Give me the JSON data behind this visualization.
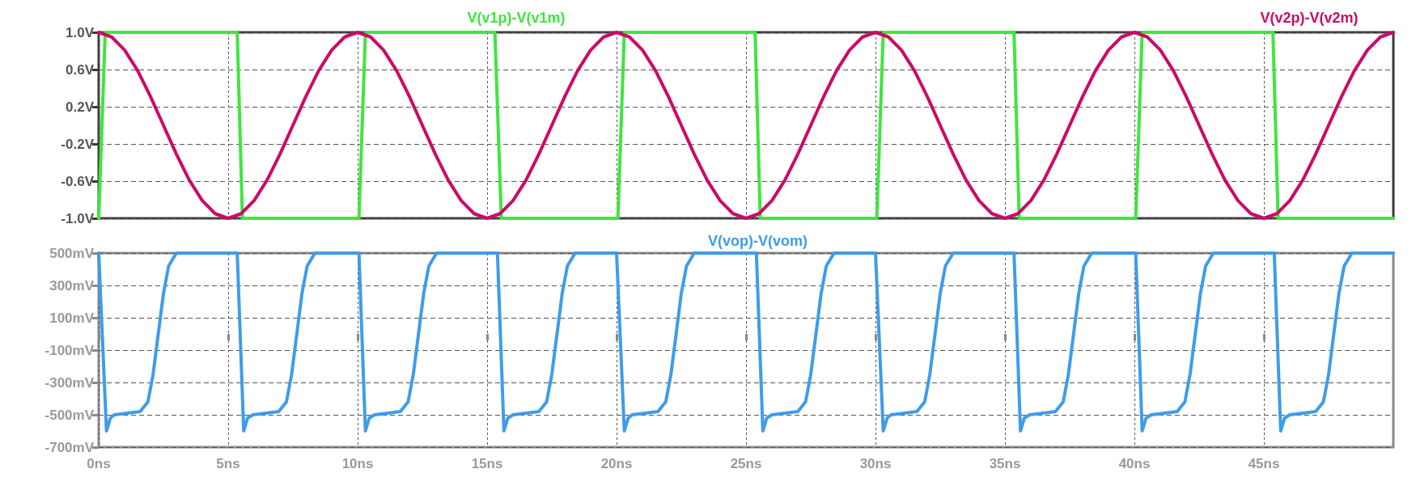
{
  "chart_data": [
    {
      "type": "line",
      "legend": "top",
      "grid": true,
      "tick_labels": "y",
      "marker": "none",
      "line_style": "solid",
      "xlim": [
        0,
        50
      ],
      "xticks": [
        {
          "value": 0,
          "label": null
        },
        {
          "value": 5,
          "label": null
        },
        {
          "value": 10,
          "label": null
        },
        {
          "value": 15,
          "label": null
        },
        {
          "value": 20,
          "label": null
        },
        {
          "value": 25,
          "label": null
        },
        {
          "value": 30,
          "label": null
        },
        {
          "value": 35,
          "label": null
        },
        {
          "value": 40,
          "label": null
        },
        {
          "value": 45,
          "label": null
        }
      ],
      "ylim": [
        -1,
        1
      ],
      "yticks": [
        {
          "value": 1,
          "label": "1.0V"
        },
        {
          "value": 0.6,
          "label": "0.6V"
        },
        {
          "value": 0.2,
          "label": "0.2V"
        },
        {
          "value": -0.2,
          "label": "-0.2V"
        },
        {
          "value": -0.6,
          "label": "-0.6V"
        },
        {
          "value": -1,
          "label": "-1.0V"
        }
      ],
      "series": [
        {
          "name": "V(v1p)-V(v1m)",
          "color": "#3ee63e",
          "x": [
            0,
            0.25,
            5.35,
            5.55,
            10.05,
            10.3,
            15.3,
            15.55,
            20.05,
            20.3,
            25.35,
            25.55,
            30.05,
            30.3,
            35.35,
            35.55,
            40.05,
            40.3,
            45.35,
            45.55,
            50
          ],
          "values": [
            -1,
            1,
            1,
            -1,
            -1,
            1,
            1,
            -1,
            -1,
            1,
            1,
            -1,
            -1,
            1,
            1,
            -1,
            -1,
            1,
            1,
            -1,
            -1
          ]
        },
        {
          "name": "V(v2p)-V(v2m)",
          "color": "#cc0a66",
          "x": [
            0,
            0.5,
            1,
            1.5,
            2,
            2.5,
            3,
            3.5,
            4,
            4.5,
            5,
            5.5,
            6,
            6.5,
            7,
            7.5,
            8,
            8.5,
            9,
            9.5,
            10,
            10.5,
            11,
            11.5,
            12,
            12.5,
            13,
            13.5,
            14,
            14.5,
            15,
            15.5,
            16,
            16.5,
            17,
            17.5,
            18,
            18.5,
            19,
            19.5,
            20,
            20.5,
            21,
            21.5,
            22,
            22.5,
            23,
            23.5,
            24,
            24.5,
            25,
            25.5,
            26,
            26.5,
            27,
            27.5,
            28,
            28.5,
            29,
            29.5,
            30,
            30.5,
            31,
            31.5,
            32,
            32.5,
            33,
            33.5,
            34,
            34.5,
            35,
            35.5,
            36,
            36.5,
            37,
            37.5,
            38,
            38.5,
            39,
            39.5,
            40,
            40.5,
            41,
            41.5,
            42,
            42.5,
            43,
            43.5,
            44,
            44.5,
            45,
            45.5,
            46,
            46.5,
            47,
            47.5,
            48,
            48.5,
            49,
            49.5,
            50
          ],
          "values": [
            1,
            0.95,
            0.81,
            0.59,
            0.31,
            0,
            -0.31,
            -0.59,
            -0.81,
            -0.95,
            -1,
            -0.95,
            -0.81,
            -0.59,
            -0.31,
            0,
            0.31,
            0.59,
            0.81,
            0.95,
            1,
            0.95,
            0.81,
            0.59,
            0.31,
            0,
            -0.31,
            -0.59,
            -0.81,
            -0.95,
            -1,
            -0.95,
            -0.81,
            -0.59,
            -0.31,
            0,
            0.31,
            0.59,
            0.81,
            0.95,
            1,
            0.95,
            0.81,
            0.59,
            0.31,
            0,
            -0.31,
            -0.59,
            -0.81,
            -0.95,
            -1,
            -0.95,
            -0.81,
            -0.59,
            -0.31,
            0,
            0.31,
            0.59,
            0.81,
            0.95,
            1,
            0.95,
            0.81,
            0.59,
            0.31,
            0,
            -0.31,
            -0.59,
            -0.81,
            -0.95,
            -1,
            -0.95,
            -0.81,
            -0.59,
            -0.31,
            0,
            0.31,
            0.59,
            0.81,
            0.95,
            1,
            0.95,
            0.81,
            0.59,
            0.31,
            0,
            -0.31,
            -0.59,
            -0.81,
            -0.95,
            -1,
            -0.95,
            -0.81,
            -0.59,
            -0.31,
            0,
            0.31,
            0.59,
            0.81,
            0.95,
            1
          ]
        }
      ]
    },
    {
      "type": "line",
      "legend": "top",
      "grid": true,
      "marker": "none",
      "line_style": "solid",
      "xlim": [
        0,
        50
      ],
      "xticks": [
        {
          "value": 0,
          "label": "0ns"
        },
        {
          "value": 5,
          "label": "5ns"
        },
        {
          "value": 10,
          "label": "10ns"
        },
        {
          "value": 15,
          "label": "15ns"
        },
        {
          "value": 20,
          "label": "20ns"
        },
        {
          "value": 25,
          "label": "25ns"
        },
        {
          "value": 30,
          "label": "30ns"
        },
        {
          "value": 35,
          "label": "35ns"
        },
        {
          "value": 40,
          "label": "40ns"
        },
        {
          "value": 45,
          "label": "45ns"
        }
      ],
      "ylim": [
        -700,
        500
      ],
      "yticks": [
        {
          "value": 500,
          "label": "500mV"
        },
        {
          "value": 300,
          "label": "300mV"
        },
        {
          "value": 100,
          "label": "100mV"
        },
        {
          "value": -100,
          "label": "-100mV"
        },
        {
          "value": -300,
          "label": "-300mV"
        },
        {
          "value": -500,
          "label": "-500mV"
        },
        {
          "value": -700,
          "label": "-700mV"
        }
      ],
      "series": [
        {
          "name": "V(vop)-V(vom)",
          "color": "#3f9cea",
          "x": [
            0,
            0.3,
            0.45,
            0.6,
            1.6,
            1.9,
            2.1,
            2.3,
            2.5,
            2.7,
            3,
            5.35,
            5.6,
            5.75,
            5.95,
            6.95,
            7.25,
            7.45,
            7.65,
            7.85,
            8.05,
            8.35,
            10.05,
            10.3,
            10.45,
            10.65,
            11.65,
            11.95,
            12.15,
            12.35,
            12.55,
            12.75,
            13.05,
            15.4,
            15.65,
            15.8,
            16,
            17,
            17.3,
            17.5,
            17.7,
            17.9,
            18.1,
            18.4,
            20,
            20.3,
            20.45,
            20.6,
            21.6,
            21.9,
            22.1,
            22.3,
            22.5,
            22.7,
            23,
            25.4,
            25.65,
            25.8,
            26,
            27,
            27.3,
            27.5,
            27.7,
            27.9,
            28.1,
            28.4,
            30,
            30.3,
            30.45,
            30.6,
            31.6,
            31.9,
            32.1,
            32.3,
            32.5,
            32.7,
            33,
            35.35,
            35.6,
            35.75,
            35.95,
            36.95,
            37.25,
            37.45,
            37.65,
            37.85,
            38.05,
            38.35,
            40.05,
            40.3,
            40.45,
            40.65,
            41.65,
            41.95,
            42.15,
            42.35,
            42.55,
            42.75,
            43.05,
            45.4,
            45.65,
            45.8,
            46,
            47,
            47.3,
            47.5,
            47.7,
            47.9,
            48.1,
            48.4,
            50
          ],
          "values": [
            500,
            -600,
            -520,
            -500,
            -480,
            -420,
            -250,
            0,
            250,
            420,
            500,
            500,
            -600,
            -520,
            -500,
            -480,
            -420,
            -250,
            0,
            250,
            420,
            500,
            500,
            -600,
            -520,
            -500,
            -480,
            -420,
            -250,
            0,
            250,
            420,
            500,
            500,
            -600,
            -520,
            -500,
            -480,
            -420,
            -250,
            0,
            250,
            420,
            500,
            500,
            -600,
            -520,
            -500,
            -480,
            -420,
            -250,
            0,
            250,
            420,
            500,
            500,
            -600,
            -520,
            -500,
            -480,
            -420,
            -250,
            0,
            250,
            420,
            500,
            500,
            -600,
            -520,
            -500,
            -480,
            -420,
            -250,
            0,
            250,
            420,
            500,
            500,
            -600,
            -520,
            -500,
            -480,
            -420,
            -250,
            0,
            250,
            420,
            500,
            500,
            -600,
            -520,
            -500,
            -480,
            -420,
            -250,
            0,
            250,
            420,
            500,
            500,
            -600,
            -520,
            -500,
            -480,
            -420,
            -250,
            0,
            250,
            420,
            500,
            500
          ]
        }
      ]
    }
  ]
}
